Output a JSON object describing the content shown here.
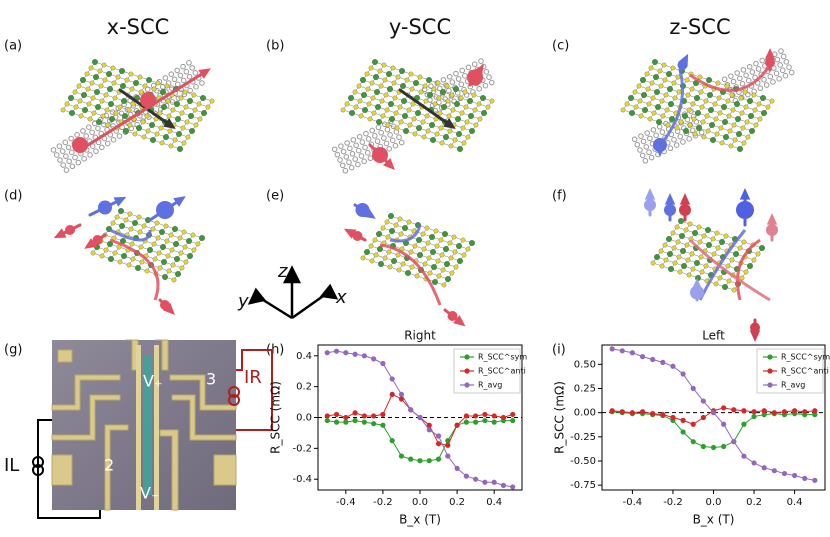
{
  "columns": [
    "x-SCC",
    "y-SCC",
    "z-SCC"
  ],
  "panels": [
    "(a)",
    "(b)",
    "(c)",
    "(d)",
    "(e)",
    "(f)",
    "(g)",
    "(h)",
    "(i)"
  ],
  "axes_labels": [
    "z",
    "y",
    "x"
  ],
  "device": {
    "labels": [
      "V₊",
      "V₋",
      "3",
      "2",
      "IR",
      "IL"
    ]
  },
  "chart_data": [
    {
      "type": "line",
      "title": "Right",
      "xlabel": "B_x (T)",
      "ylabel": "R_SCC (mΩ)",
      "x": [
        -0.5,
        -0.45,
        -0.4,
        -0.35,
        -0.3,
        -0.25,
        -0.2,
        -0.15,
        -0.1,
        -0.05,
        0,
        0.05,
        0.1,
        0.15,
        0.2,
        0.25,
        0.3,
        0.35,
        0.4,
        0.45,
        0.5
      ],
      "series": [
        {
          "name": "R_SCC^sym",
          "color": "#2ca02c",
          "values": [
            -0.02,
            -0.03,
            -0.03,
            -0.02,
            -0.03,
            -0.04,
            -0.05,
            -0.15,
            -0.25,
            -0.27,
            -0.28,
            -0.28,
            -0.27,
            -0.15,
            -0.05,
            -0.03,
            -0.03,
            -0.02,
            -0.03,
            -0.02,
            -0.02
          ]
        },
        {
          "name": "R_SCC^anti",
          "color": "#d62728",
          "values": [
            0.01,
            0.02,
            0,
            0.03,
            0.01,
            0.01,
            0.02,
            0.15,
            0.12,
            0.05,
            0,
            -0.05,
            -0.17,
            -0.18,
            -0.05,
            0.01,
            0.01,
            0.02,
            0.01,
            0,
            0.02
          ]
        },
        {
          "name": "R_avg",
          "color": "#9467bd",
          "values": [
            0.42,
            0.43,
            0.42,
            0.41,
            0.4,
            0.38,
            0.35,
            0.25,
            0.15,
            0.05,
            0,
            -0.08,
            -0.12,
            -0.25,
            -0.33,
            -0.38,
            -0.4,
            -0.42,
            -0.42,
            -0.44,
            -0.45
          ]
        }
      ],
      "xlim": [
        -0.55,
        0.55
      ],
      "xticks": [
        -0.4,
        -0.2,
        {
          "value": 0,
          "label": "0.0"
        },
        0.2,
        0.4
      ],
      "ylim": [
        -0.47,
        0.47
      ],
      "yticks": [
        -0.4,
        -0.2,
        {
          "value": 0,
          "label": "0.0"
        },
        0.2,
        0.4
      ],
      "hline": 0,
      "legend": "upper right"
    },
    {
      "type": "line",
      "title": "Left",
      "xlabel": "B_x (T)",
      "ylabel": "R_SCC (mΩ)",
      "x": [
        -0.5,
        -0.45,
        -0.4,
        -0.35,
        -0.3,
        -0.25,
        -0.2,
        -0.15,
        -0.1,
        -0.05,
        0,
        0.05,
        0.1,
        0.15,
        0.2,
        0.25,
        0.3,
        0.35,
        0.4,
        0.45,
        0.5
      ],
      "series": [
        {
          "name": "R_SCC^sym",
          "color": "#2ca02c",
          "values": [
            0.01,
            0,
            -0.01,
            -0.01,
            -0.02,
            -0.03,
            -0.08,
            -0.2,
            -0.3,
            -0.35,
            -0.36,
            -0.35,
            -0.3,
            -0.12,
            -0.04,
            -0.02,
            -0.01,
            -0.02,
            -0.01,
            -0.02,
            -0.02
          ]
        },
        {
          "name": "R_SCC^anti",
          "color": "#d62728",
          "values": [
            0.02,
            0.01,
            0,
            0.01,
            -0.01,
            -0.02,
            -0.05,
            -0.08,
            -0.12,
            -0.05,
            0.02,
            0.05,
            0.03,
            0.02,
            0.01,
            0.02,
            0,
            0.01,
            0.02,
            0.01,
            0.02
          ]
        },
        {
          "name": "R_avg",
          "color": "#9467bd",
          "values": [
            0.66,
            0.64,
            0.62,
            0.58,
            0.55,
            0.52,
            0.48,
            0.4,
            0.25,
            0.12,
            0,
            -0.12,
            -0.3,
            -0.45,
            -0.52,
            -0.57,
            -0.6,
            -0.63,
            -0.65,
            -0.68,
            -0.7
          ]
        }
      ],
      "xlim": [
        -0.55,
        0.55
      ],
      "xticks": [
        -0.4,
        -0.2,
        {
          "value": 0,
          "label": "0.0"
        },
        0.2,
        0.4
      ],
      "ylim": [
        -0.8,
        0.7
      ],
      "yticks": [
        {
          "value": -0.75,
          "label": "-0.75"
        },
        {
          "value": -0.5,
          "label": "-0.50"
        },
        {
          "value": -0.25,
          "label": "-0.25"
        },
        {
          "value": 0,
          "label": "0.00"
        },
        {
          "value": 0.25,
          "label": "0.25"
        },
        {
          "value": 0.5,
          "label": "0.50"
        }
      ],
      "hline": 0,
      "legend": "upper right"
    }
  ]
}
